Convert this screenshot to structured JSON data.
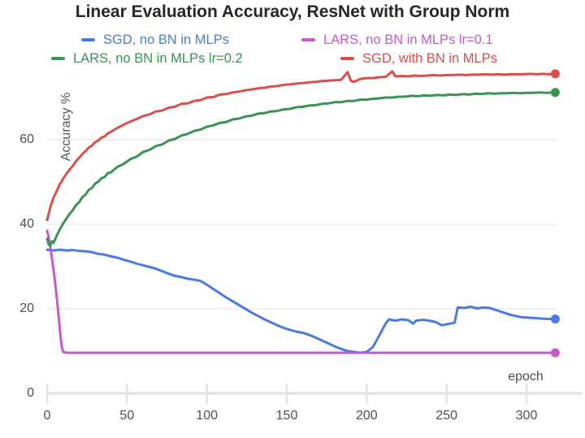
{
  "page": {
    "background": "#ffffff"
  },
  "chart_data": {
    "type": "line",
    "title": "Linear Evaluation Accuracy, ResNet with Group Norm",
    "xlabel": "epoch",
    "ylabel": "Accuracy %",
    "xlim": [
      0,
      335
    ],
    "ylim": [
      0,
      80
    ],
    "x_ticks": [
      0,
      50,
      100,
      150,
      200,
      250,
      300
    ],
    "y_ticks": [
      0,
      20,
      40,
      60
    ],
    "grid": "horizontal-only",
    "legend_position": "top, two rows",
    "axis_text_color": "#4d4e58",
    "gridline_color": "#eaeaee",
    "baseline_color": "#e3e4e8",
    "series": [
      {
        "name": "SGD, no BN in MLPs",
        "color": "#4a7ce0",
        "points": [
          [
            0,
            34.0
          ],
          [
            4,
            33.8
          ],
          [
            8,
            34.0
          ],
          [
            12,
            33.8
          ],
          [
            16,
            33.9
          ],
          [
            20,
            33.7
          ],
          [
            24,
            33.6
          ],
          [
            28,
            33.4
          ],
          [
            32,
            33.0
          ],
          [
            36,
            32.8
          ],
          [
            40,
            32.4
          ],
          [
            44,
            32.1
          ],
          [
            48,
            31.6
          ],
          [
            52,
            31.2
          ],
          [
            56,
            30.7
          ],
          [
            60,
            30.3
          ],
          [
            64,
            29.9
          ],
          [
            68,
            29.5
          ],
          [
            72,
            28.9
          ],
          [
            76,
            28.3
          ],
          [
            80,
            27.8
          ],
          [
            84,
            27.5
          ],
          [
            88,
            27.1
          ],
          [
            92,
            26.9
          ],
          [
            96,
            26.6
          ],
          [
            100,
            25.7
          ],
          [
            104,
            24.7
          ],
          [
            108,
            23.7
          ],
          [
            112,
            22.7
          ],
          [
            116,
            21.8
          ],
          [
            120,
            20.9
          ],
          [
            124,
            20.0
          ],
          [
            128,
            19.1
          ],
          [
            132,
            18.3
          ],
          [
            136,
            17.5
          ],
          [
            140,
            16.8
          ],
          [
            144,
            16.1
          ],
          [
            148,
            15.5
          ],
          [
            152,
            15.0
          ],
          [
            156,
            14.6
          ],
          [
            160,
            14.3
          ],
          [
            164,
            13.8
          ],
          [
            168,
            13.2
          ],
          [
            172,
            12.5
          ],
          [
            176,
            11.8
          ],
          [
            180,
            11.1
          ],
          [
            184,
            10.5
          ],
          [
            188,
            10.0
          ],
          [
            192,
            9.8
          ],
          [
            196,
            9.6
          ],
          [
            200,
            9.8
          ],
          [
            204,
            11.0
          ],
          [
            208,
            13.8
          ],
          [
            212,
            16.6
          ],
          [
            214,
            17.5
          ],
          [
            218,
            17.2
          ],
          [
            222,
            17.5
          ],
          [
            226,
            17.3
          ],
          [
            229,
            16.5
          ],
          [
            231,
            17.2
          ],
          [
            235,
            17.4
          ],
          [
            239,
            17.2
          ],
          [
            243,
            16.9
          ],
          [
            247,
            16.1
          ],
          [
            251,
            16.4
          ],
          [
            255,
            16.7
          ],
          [
            257,
            20.3
          ],
          [
            261,
            20.2
          ],
          [
            265,
            20.5
          ],
          [
            269,
            20.1
          ],
          [
            273,
            20.3
          ],
          [
            277,
            20.2
          ],
          [
            281,
            19.7
          ],
          [
            285,
            19.2
          ],
          [
            289,
            18.7
          ],
          [
            293,
            18.3
          ],
          [
            297,
            18.0
          ],
          [
            301,
            17.9
          ],
          [
            305,
            17.8
          ],
          [
            309,
            17.7
          ],
          [
            313,
            17.6
          ],
          [
            318,
            17.6
          ]
        ]
      },
      {
        "name": "LARS, no BN in MLPs lr=0.1",
        "color": "#c35bce",
        "points": [
          [
            0,
            38.5
          ],
          [
            1,
            36.8
          ],
          [
            2,
            34.6
          ],
          [
            3,
            32.0
          ],
          [
            4,
            29.2
          ],
          [
            5,
            26.2
          ],
          [
            6,
            22.8
          ],
          [
            7,
            19.0
          ],
          [
            8,
            15.0
          ],
          [
            9,
            11.4
          ],
          [
            10,
            9.8
          ],
          [
            12,
            9.6
          ],
          [
            20,
            9.6
          ],
          [
            60,
            9.6
          ],
          [
            120,
            9.6
          ],
          [
            180,
            9.6
          ],
          [
            240,
            9.6
          ],
          [
            300,
            9.6
          ],
          [
            318,
            9.6
          ]
        ]
      },
      {
        "name": "LARS, no BN in MLPs lr=0.2",
        "color": "#3b9255",
        "points": [
          [
            0,
            36.6
          ],
          [
            1,
            35.2
          ],
          [
            2,
            34.9
          ],
          [
            3,
            36.0
          ],
          [
            4,
            35.6
          ],
          [
            6,
            37.3
          ],
          [
            8,
            38.8
          ],
          [
            10,
            40.2
          ],
          [
            12,
            41.3
          ],
          [
            14,
            42.4
          ],
          [
            16,
            43.3
          ],
          [
            18,
            44.5
          ],
          [
            20,
            45.2
          ],
          [
            22,
            46.4
          ],
          [
            24,
            47.0
          ],
          [
            26,
            48.1
          ],
          [
            28,
            48.6
          ],
          [
            30,
            49.6
          ],
          [
            32,
            50.1
          ],
          [
            34,
            50.9
          ],
          [
            36,
            51.2
          ],
          [
            38,
            52.1
          ],
          [
            40,
            52.3
          ],
          [
            44,
            53.6
          ],
          [
            48,
            54.3
          ],
          [
            52,
            55.4
          ],
          [
            56,
            56.0
          ],
          [
            60,
            57.1
          ],
          [
            64,
            57.6
          ],
          [
            68,
            58.5
          ],
          [
            72,
            58.9
          ],
          [
            76,
            59.8
          ],
          [
            80,
            60.2
          ],
          [
            84,
            61.0
          ],
          [
            88,
            61.4
          ],
          [
            92,
            62.1
          ],
          [
            96,
            62.4
          ],
          [
            100,
            63.1
          ],
          [
            104,
            63.4
          ],
          [
            108,
            64.0
          ],
          [
            112,
            64.2
          ],
          [
            116,
            64.8
          ],
          [
            120,
            65.0
          ],
          [
            124,
            65.5
          ],
          [
            128,
            65.7
          ],
          [
            132,
            66.2
          ],
          [
            136,
            66.3
          ],
          [
            140,
            66.7
          ],
          [
            144,
            66.8
          ],
          [
            148,
            67.2
          ],
          [
            152,
            67.3
          ],
          [
            156,
            67.7
          ],
          [
            160,
            67.8
          ],
          [
            164,
            68.1
          ],
          [
            168,
            68.2
          ],
          [
            172,
            68.5
          ],
          [
            176,
            68.6
          ],
          [
            180,
            68.9
          ],
          [
            184,
            68.9
          ],
          [
            188,
            69.2
          ],
          [
            192,
            69.2
          ],
          [
            196,
            69.5
          ],
          [
            200,
            69.5
          ],
          [
            204,
            69.7
          ],
          [
            208,
            69.8
          ],
          [
            212,
            70.0
          ],
          [
            216,
            70.0
          ],
          [
            220,
            70.2
          ],
          [
            224,
            70.2
          ],
          [
            228,
            70.4
          ],
          [
            232,
            70.3
          ],
          [
            236,
            70.5
          ],
          [
            240,
            70.4
          ],
          [
            244,
            70.6
          ],
          [
            248,
            70.5
          ],
          [
            252,
            70.7
          ],
          [
            256,
            70.6
          ],
          [
            260,
            70.8
          ],
          [
            264,
            70.7
          ],
          [
            268,
            70.9
          ],
          [
            272,
            70.8
          ],
          [
            276,
            71.0
          ],
          [
            280,
            70.9
          ],
          [
            284,
            71.0
          ],
          [
            288,
            71.0
          ],
          [
            292,
            71.1
          ],
          [
            296,
            71.0
          ],
          [
            300,
            71.1
          ],
          [
            304,
            71.1
          ],
          [
            308,
            71.2
          ],
          [
            312,
            71.1
          ],
          [
            318,
            71.2
          ]
        ]
      },
      {
        "name": "SGD, with BN in MLPs",
        "color": "#d9504a",
        "points": [
          [
            0,
            41.0
          ],
          [
            1,
            42.5
          ],
          [
            2,
            44.0
          ],
          [
            3,
            45.2
          ],
          [
            4,
            46.3
          ],
          [
            5,
            47.0
          ],
          [
            6,
            47.9
          ],
          [
            7,
            48.7
          ],
          [
            8,
            49.6
          ],
          [
            9,
            50.0
          ],
          [
            10,
            50.8
          ],
          [
            12,
            51.9
          ],
          [
            14,
            52.9
          ],
          [
            16,
            53.8
          ],
          [
            18,
            54.9
          ],
          [
            20,
            55.7
          ],
          [
            22,
            56.6
          ],
          [
            24,
            57.3
          ],
          [
            26,
            58.1
          ],
          [
            28,
            58.6
          ],
          [
            30,
            59.4
          ],
          [
            32,
            59.8
          ],
          [
            34,
            60.5
          ],
          [
            36,
            60.8
          ],
          [
            38,
            61.5
          ],
          [
            40,
            61.9
          ],
          [
            44,
            62.8
          ],
          [
            48,
            63.6
          ],
          [
            52,
            64.3
          ],
          [
            56,
            64.9
          ],
          [
            60,
            65.6
          ],
          [
            64,
            66.0
          ],
          [
            68,
            66.7
          ],
          [
            72,
            66.9
          ],
          [
            76,
            67.6
          ],
          [
            80,
            67.8
          ],
          [
            84,
            68.5
          ],
          [
            88,
            68.6
          ],
          [
            92,
            69.2
          ],
          [
            96,
            69.4
          ],
          [
            100,
            70.0
          ],
          [
            104,
            70.1
          ],
          [
            108,
            70.7
          ],
          [
            112,
            70.8
          ],
          [
            116,
            71.2
          ],
          [
            120,
            71.4
          ],
          [
            124,
            71.7
          ],
          [
            128,
            71.9
          ],
          [
            132,
            72.2
          ],
          [
            136,
            72.3
          ],
          [
            140,
            72.6
          ],
          [
            144,
            72.7
          ],
          [
            148,
            73.0
          ],
          [
            152,
            73.1
          ],
          [
            156,
            73.3
          ],
          [
            160,
            73.4
          ],
          [
            164,
            73.6
          ],
          [
            168,
            73.7
          ],
          [
            172,
            73.9
          ],
          [
            176,
            74.0
          ],
          [
            180,
            74.1
          ],
          [
            184,
            74.2
          ],
          [
            188,
            76.0
          ],
          [
            190,
            74.0
          ],
          [
            192,
            73.7
          ],
          [
            196,
            74.4
          ],
          [
            200,
            74.6
          ],
          [
            204,
            74.6
          ],
          [
            208,
            74.8
          ],
          [
            212,
            74.9
          ],
          [
            216,
            76.2
          ],
          [
            218,
            75.0
          ],
          [
            222,
            75.1
          ],
          [
            226,
            75.0
          ],
          [
            230,
            75.2
          ],
          [
            234,
            75.1
          ],
          [
            238,
            75.2
          ],
          [
            242,
            75.3
          ],
          [
            246,
            75.2
          ],
          [
            250,
            75.3
          ],
          [
            254,
            75.3
          ],
          [
            258,
            75.4
          ],
          [
            262,
            75.3
          ],
          [
            266,
            75.4
          ],
          [
            270,
            75.4
          ],
          [
            274,
            75.5
          ],
          [
            278,
            75.4
          ],
          [
            282,
            75.5
          ],
          [
            286,
            75.4
          ],
          [
            290,
            75.5
          ],
          [
            294,
            75.5
          ],
          [
            298,
            75.5
          ],
          [
            302,
            75.6
          ],
          [
            306,
            75.5
          ],
          [
            310,
            75.6
          ],
          [
            314,
            75.5
          ],
          [
            318,
            75.6
          ]
        ]
      }
    ]
  }
}
